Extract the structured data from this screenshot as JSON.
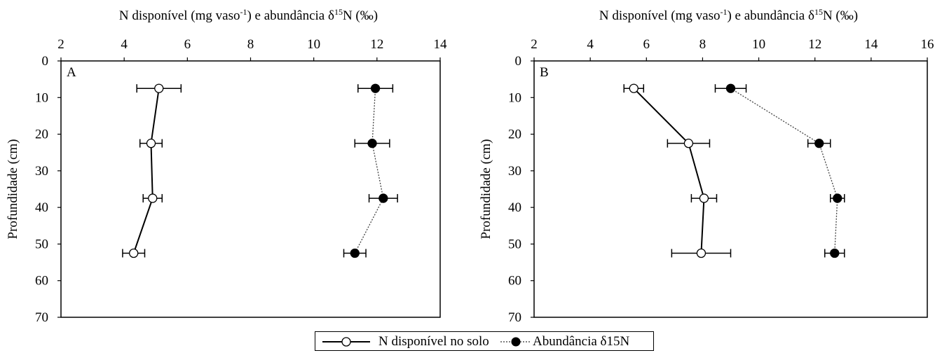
{
  "chart_data": [
    {
      "type": "line",
      "panel_label": "A",
      "top_axis_label": "N disponível (mg vaso-1) e abundância δ15N (‰)",
      "ylabel": "Profundidade (cm)",
      "xlim": [
        2,
        14
      ],
      "ylim": [
        0,
        70
      ],
      "y_inverted": true,
      "xticks": [
        2,
        4,
        6,
        8,
        10,
        12,
        14
      ],
      "yticks": [
        0,
        10,
        20,
        30,
        40,
        50,
        60,
        70
      ],
      "series": [
        {
          "name": "N disponível no solo",
          "marker": "open-circle",
          "line": "solid",
          "points": [
            {
              "x": 5.1,
              "y": 7.5,
              "err": 0.7
            },
            {
              "x": 4.85,
              "y": 22.5,
              "err": 0.35
            },
            {
              "x": 4.9,
              "y": 37.5,
              "err": 0.3
            },
            {
              "x": 4.3,
              "y": 52.5,
              "err": 0.35
            }
          ]
        },
        {
          "name": "Abundância δ15N",
          "marker": "filled-circle",
          "line": "dotted",
          "points": [
            {
              "x": 11.95,
              "y": 7.5,
              "err": 0.55
            },
            {
              "x": 11.85,
              "y": 22.5,
              "err": 0.55
            },
            {
              "x": 12.2,
              "y": 37.5,
              "err": 0.45
            },
            {
              "x": 11.3,
              "y": 52.5,
              "err": 0.35
            }
          ]
        }
      ]
    },
    {
      "type": "line",
      "panel_label": "B",
      "top_axis_label": "N disponível (mg vaso-1) e abundância δ15N (‰)",
      "ylabel": "Profundidade (cm)",
      "xlim": [
        2,
        16
      ],
      "ylim": [
        0,
        70
      ],
      "y_inverted": true,
      "xticks": [
        2,
        4,
        6,
        8,
        10,
        12,
        14,
        16
      ],
      "yticks": [
        0,
        10,
        20,
        30,
        40,
        50,
        60,
        70
      ],
      "series": [
        {
          "name": "N disponível no solo",
          "marker": "open-circle",
          "line": "solid",
          "points": [
            {
              "x": 5.55,
              "y": 7.5,
              "err": 0.35
            },
            {
              "x": 7.5,
              "y": 22.5,
              "err": 0.75
            },
            {
              "x": 8.05,
              "y": 37.5,
              "err": 0.45
            },
            {
              "x": 7.95,
              "y": 52.5,
              "err": 1.05
            }
          ]
        },
        {
          "name": "Abundância δ15N",
          "marker": "filled-circle",
          "line": "dotted",
          "points": [
            {
              "x": 9.0,
              "y": 7.5,
              "err": 0.55
            },
            {
              "x": 12.15,
              "y": 22.5,
              "err": 0.4
            },
            {
              "x": 12.8,
              "y": 37.5,
              "err": 0.25
            },
            {
              "x": 12.7,
              "y": 52.5,
              "err": 0.35
            }
          ]
        }
      ]
    }
  ],
  "legend": [
    {
      "label": "N disponível no solo",
      "marker": "open-circle",
      "line": "solid"
    },
    {
      "label": "Abundância δ15N",
      "marker": "filled-circle",
      "line": "dotted"
    }
  ]
}
